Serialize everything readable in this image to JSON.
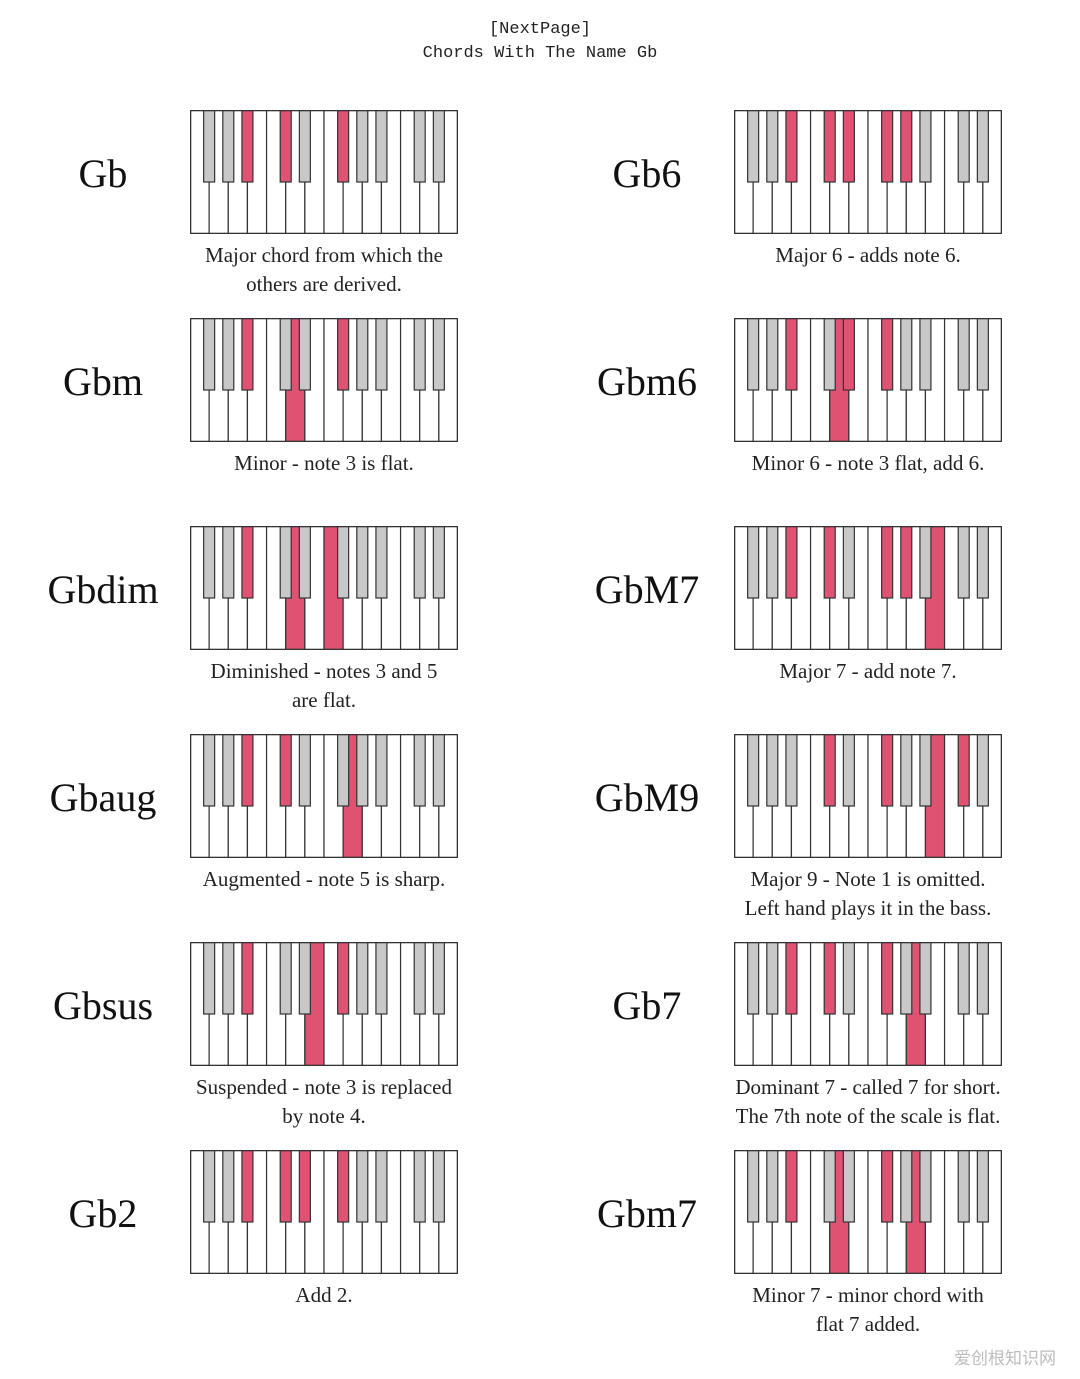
{
  "header": {
    "nav": "[NextPage]",
    "title": "Chords With The Name Gb"
  },
  "colors": {
    "highlight": "#e05272",
    "black_key": "#c8c8c8",
    "outline": "#333333"
  },
  "chords": [
    {
      "name": "Gb",
      "caption": [
        "Major chord from which the",
        "others are derived."
      ],
      "white": [],
      "black": [
        2,
        3,
        5
      ]
    },
    {
      "name": "Gb6",
      "caption": [
        "Major 6 - adds note 6."
      ],
      "white": [],
      "black": [
        2,
        3,
        4,
        5,
        6
      ]
    },
    {
      "name": "Gbm",
      "caption": [
        "Minor - note 3 is flat."
      ],
      "white": [
        5
      ],
      "black": [
        2,
        5
      ]
    },
    {
      "name": "Gbm6",
      "caption": [
        "Minor 6 - note 3 flat, add 6."
      ],
      "white": [
        5
      ],
      "black": [
        2,
        4,
        5
      ]
    },
    {
      "name": "Gbdim",
      "caption": [
        "Diminished - notes 3 and 5",
        "are flat."
      ],
      "white": [
        5,
        7
      ],
      "black": [
        2
      ]
    },
    {
      "name": "GbM7",
      "caption": [
        "Major 7 - add note 7."
      ],
      "white": [
        10
      ],
      "black": [
        2,
        3,
        5,
        6
      ]
    },
    {
      "name": "Gbaug",
      "caption": [
        "Augmented - note 5 is sharp."
      ],
      "white": [
        8
      ],
      "black": [
        2,
        3
      ]
    },
    {
      "name": "GbM9",
      "caption": [
        "Major 9 - Note 1 is omitted.",
        "Left hand plays it in the bass."
      ],
      "white": [
        10
      ],
      "black": [
        3,
        5,
        8
      ]
    },
    {
      "name": "Gbsus",
      "caption": [
        "Suspended - note 3 is replaced",
        "by note 4."
      ],
      "white": [
        6
      ],
      "black": [
        2,
        5
      ]
    },
    {
      "name": "Gb7",
      "caption": [
        "Dominant 7 - called 7 for short.",
        "The 7th note of the scale is flat."
      ],
      "white": [
        9
      ],
      "black": [
        2,
        3,
        5
      ]
    },
    {
      "name": "Gb2",
      "caption": [
        "Add 2."
      ],
      "white": [],
      "black": [
        2,
        3,
        4,
        5
      ]
    },
    {
      "name": "Gbm7",
      "caption": [
        "Minor 7 - minor chord with",
        "flat 7 added."
      ],
      "white": [
        5,
        9
      ],
      "black": [
        2,
        5
      ]
    }
  ],
  "watermark": "爱创根知识网"
}
